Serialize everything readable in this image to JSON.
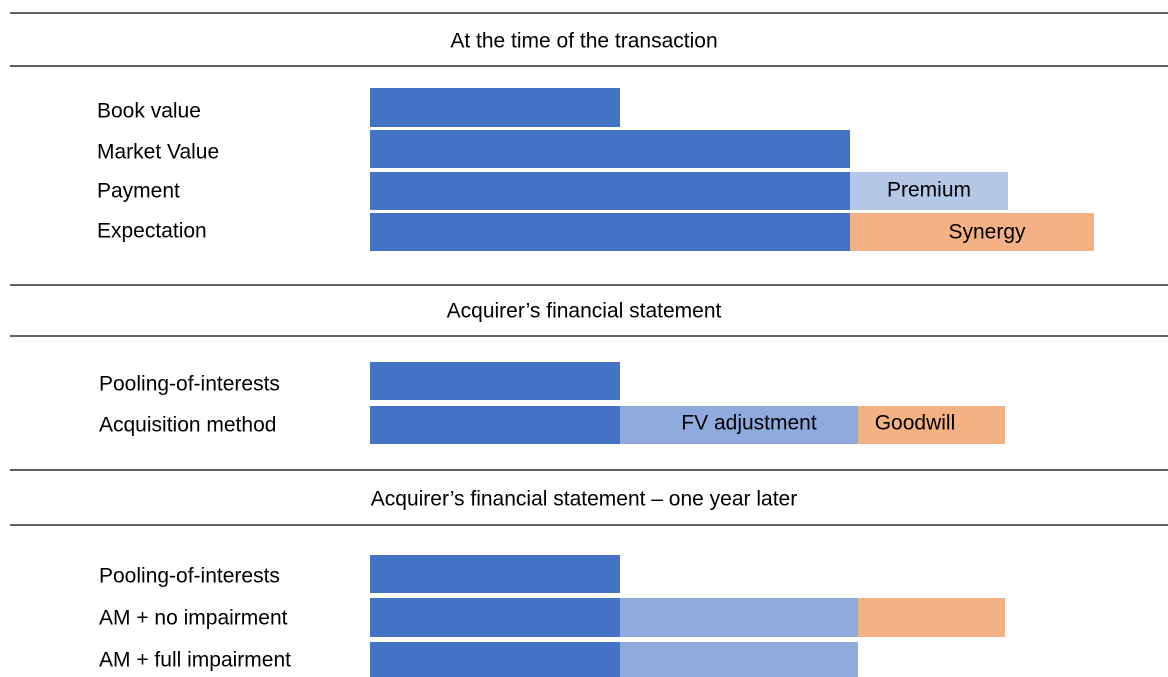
{
  "sections": [
    {
      "title": "At the time of the transaction",
      "rows": [
        {
          "label": "Book value"
        },
        {
          "label": "Market Value"
        },
        {
          "label": "Payment",
          "segments": [
            "Premium"
          ]
        },
        {
          "label": "Expectation",
          "segments": [
            "Synergy"
          ]
        }
      ]
    },
    {
      "title": "Acquirer’s financial statement",
      "rows": [
        {
          "label": "Pooling-of-interests"
        },
        {
          "label": "Acquisition method",
          "segments": [
            "FV adjustment",
            "Goodwill"
          ]
        }
      ]
    },
    {
      "title": "Acquirer’s financial statement – one year later",
      "rows": [
        {
          "label": "Pooling-of-interests"
        },
        {
          "label": "AM + no impairment"
        },
        {
          "label": "AM + full impairment"
        }
      ]
    }
  ]
}
